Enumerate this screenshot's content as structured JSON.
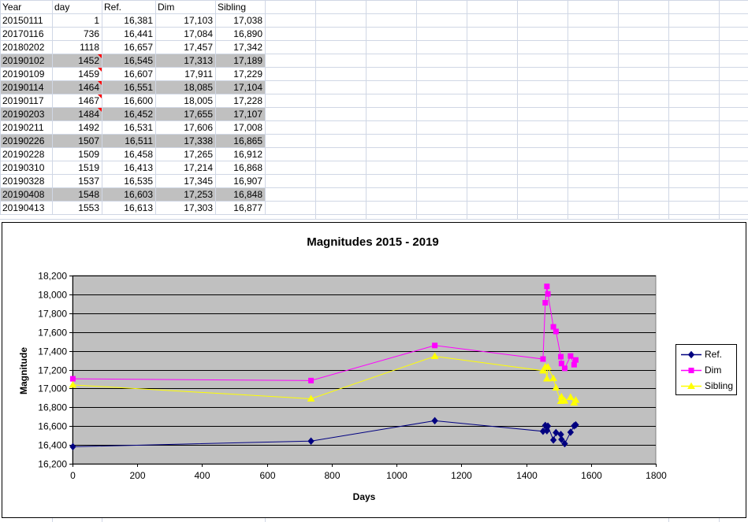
{
  "spreadsheet": {
    "headers": [
      "Year",
      "day",
      "Ref.",
      "Dim",
      "Sibling"
    ],
    "rows": [
      [
        "20150111",
        "1",
        "16,381",
        "17,103",
        "17,038"
      ],
      [
        "20170116",
        "736",
        "16,441",
        "17,084",
        "16,890"
      ],
      [
        "20180202",
        "1118",
        "16,657",
        "17,457",
        "17,342"
      ],
      [
        "20190102",
        "1452",
        "16,545",
        "17,313",
        "17,189"
      ],
      [
        "20190109",
        "1459",
        "16,607",
        "17,911",
        "17,229"
      ],
      [
        "20190114",
        "1464",
        "16,551",
        "18,085",
        "17,104"
      ],
      [
        "20190117",
        "1467",
        "16,600",
        "18,005",
        "17,228"
      ],
      [
        "20190203",
        "1484",
        "16,452",
        "17,655",
        "17,107"
      ],
      [
        "20190211",
        "1492",
        "16,531",
        "17,606",
        "17,008"
      ],
      [
        "20190226",
        "1507",
        "16,511",
        "17,338",
        "16,865"
      ],
      [
        "20190228",
        "1509",
        "16,458",
        "17,265",
        "16,912"
      ],
      [
        "20190310",
        "1519",
        "16,413",
        "17,214",
        "16,868"
      ],
      [
        "20190328",
        "1537",
        "16,535",
        "17,345",
        "16,907"
      ],
      [
        "20190408",
        "1548",
        "16,603",
        "17,253",
        "16,848"
      ],
      [
        "20190413",
        "1553",
        "16,613",
        "17,303",
        "16,877"
      ]
    ],
    "shaded_rows": [
      3,
      5,
      7,
      9,
      13
    ],
    "comment_rows": [
      3,
      4,
      5,
      6,
      7
    ],
    "shade_color": "#c0c0c0",
    "grid_color": "#d0d7e5"
  },
  "chart_data": {
    "type": "line",
    "title": "Magnitudes 2015 - 2019",
    "xlabel": "Days",
    "ylabel": "Magnitude",
    "xlim": [
      0,
      1800
    ],
    "ylim": [
      16200,
      18200
    ],
    "x_ticks": [
      0,
      200,
      400,
      600,
      800,
      1000,
      1200,
      1400,
      1600,
      1800
    ],
    "y_ticks": [
      16200,
      16400,
      16600,
      16800,
      17000,
      17200,
      17400,
      17600,
      17800,
      18000,
      18200
    ],
    "x_tick_labels": [
      "0",
      "200",
      "400",
      "600",
      "800",
      "1000",
      "1200",
      "1400",
      "1600",
      "1800"
    ],
    "y_tick_labels": [
      "16,200",
      "16,400",
      "16,600",
      "16,800",
      "17,000",
      "17,200",
      "17,400",
      "17,600",
      "17,800",
      "18,000",
      "18,200"
    ],
    "grid": true,
    "plot_background": "#c0c0c0",
    "legend_position": "right",
    "x": [
      1,
      736,
      1118,
      1452,
      1459,
      1464,
      1467,
      1484,
      1492,
      1507,
      1509,
      1519,
      1537,
      1548,
      1553
    ],
    "series": [
      {
        "name": "Ref.",
        "color": "#000080",
        "marker": "diamond",
        "values": [
          16381,
          16441,
          16657,
          16545,
          16607,
          16551,
          16600,
          16452,
          16531,
          16511,
          16458,
          16413,
          16535,
          16603,
          16613
        ]
      },
      {
        "name": "Dim",
        "color": "#ff00ff",
        "marker": "square",
        "values": [
          17103,
          17084,
          17457,
          17313,
          17911,
          18085,
          18005,
          17655,
          17606,
          17338,
          17265,
          17214,
          17345,
          17253,
          17303
        ]
      },
      {
        "name": "Sibling",
        "color": "#ffff00",
        "marker": "triangle",
        "values": [
          17038,
          16890,
          17342,
          17189,
          17229,
          17104,
          17228,
          17107,
          17008,
          16865,
          16912,
          16868,
          16907,
          16848,
          16877
        ]
      }
    ]
  }
}
